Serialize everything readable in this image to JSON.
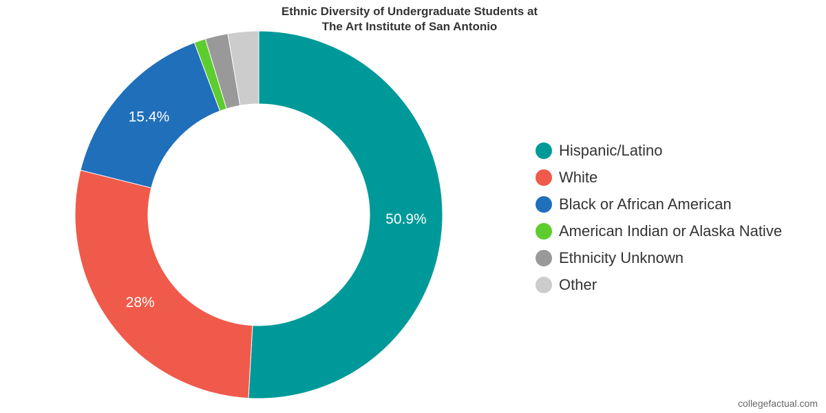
{
  "chart_data": {
    "type": "pie",
    "title_line1": "Ethnic Diversity of Undergraduate Students at",
    "title_line2": "The Art Institute of San Antonio",
    "slices": [
      {
        "name": "Hispanic/Latino",
        "value": 50.9,
        "label": "50.9%",
        "color": "#009999"
      },
      {
        "name": "White",
        "value": 28.0,
        "label": "28%",
        "color": "#f05a4a"
      },
      {
        "name": "Black or African American",
        "value": 15.4,
        "label": "15.4%",
        "color": "#1f6fbb"
      },
      {
        "name": "American Indian or Alaska Native",
        "value": 1.0,
        "label": "",
        "color": "#5ccc2e"
      },
      {
        "name": "Ethnicity Unknown",
        "value": 2.0,
        "label": "",
        "color": "#999999"
      },
      {
        "name": "Other",
        "value": 2.7,
        "label": "",
        "color": "#cccccc"
      }
    ],
    "legend_position": "right"
  },
  "watermark": "collegefactual.com"
}
